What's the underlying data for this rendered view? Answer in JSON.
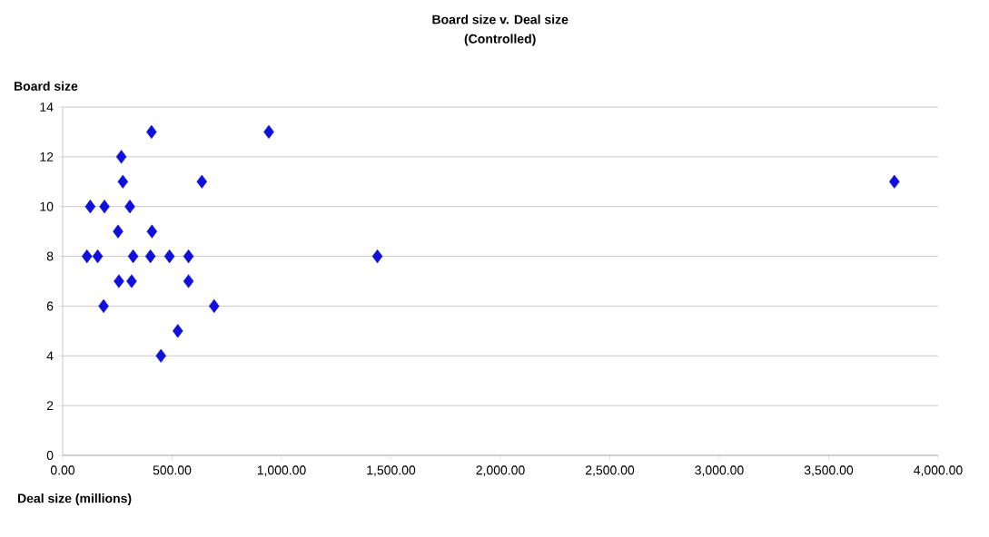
{
  "chart_data": {
    "type": "scatter",
    "title": "Board size v. Deal size",
    "subtitle": "(Controlled)",
    "xlabel": "Deal size (millions)",
    "ylabel": "Board size",
    "x": [
      406,
      942,
      268,
      275,
      636,
      3800,
      126,
      191,
      307,
      253,
      408,
      111,
      160,
      322,
      401,
      488,
      575,
      1438,
      257,
      315,
      575,
      187,
      692,
      526,
      449
    ],
    "values": [
      13,
      13,
      12,
      11,
      11,
      11,
      10,
      10,
      10,
      9,
      9,
      8,
      8,
      8,
      8,
      8,
      8,
      8,
      7,
      7,
      7,
      6,
      6,
      5,
      4
    ],
    "color": "#1010dd",
    "marker": "diamond",
    "grid": "y",
    "xlim": [
      0,
      4000
    ],
    "xticks": [
      {
        "value": 0,
        "label": "0.00"
      },
      {
        "value": 500,
        "label": "500.00"
      },
      {
        "value": 1000,
        "label": "1,000.00"
      },
      {
        "value": 1500,
        "label": "1,500.00"
      },
      {
        "value": 2000,
        "label": "2,000.00"
      },
      {
        "value": 2500,
        "label": "2,500.00"
      },
      {
        "value": 3000,
        "label": "3,000.00"
      },
      {
        "value": 3500,
        "label": "3,500.00"
      },
      {
        "value": 4000,
        "label": "4,000.00"
      }
    ],
    "ylim": [
      0,
      14
    ],
    "yticks": [
      0,
      2,
      4,
      6,
      8,
      10,
      12,
      14
    ]
  }
}
